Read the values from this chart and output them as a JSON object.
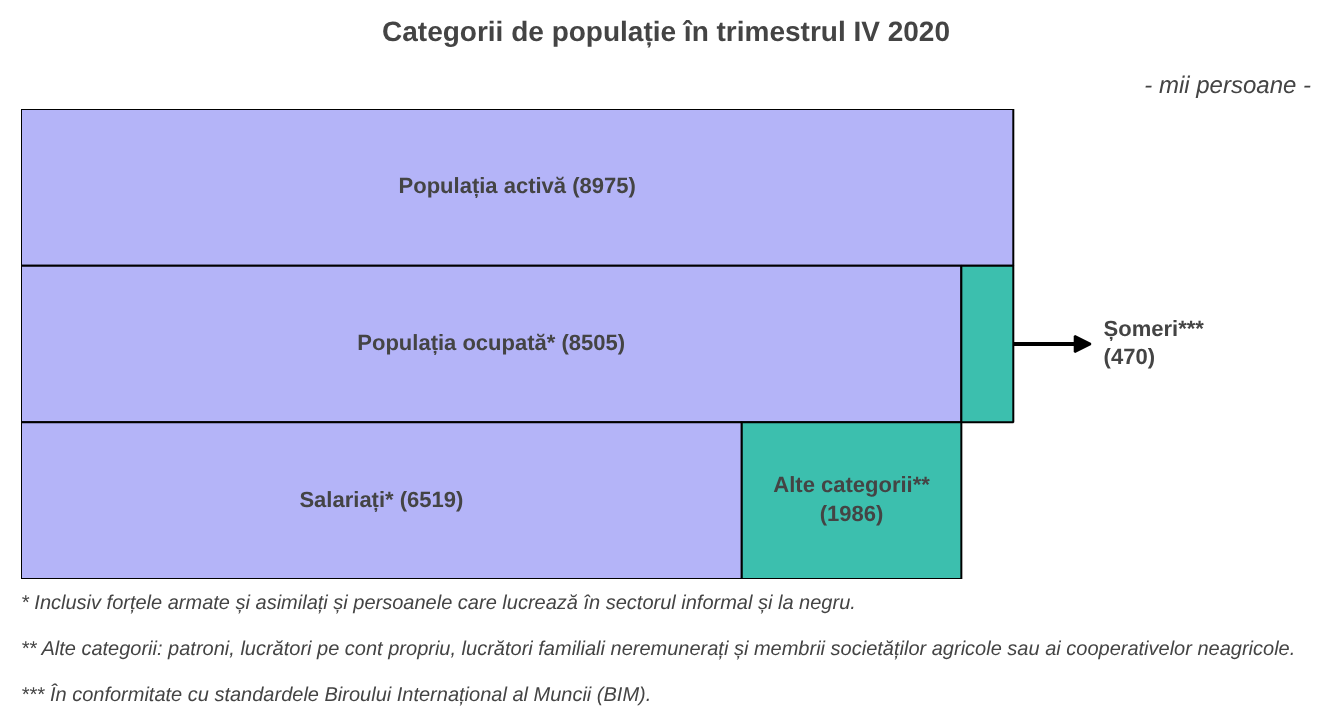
{
  "chart_data": {
    "type": "bar",
    "orientation": "horizontal",
    "stacked": true,
    "title": "Categorii de populație în trimestrul IV 2020",
    "subtitle": "- mii persoane -",
    "categories": [
      null,
      null,
      null
    ],
    "series": [
      {
        "color": "#b4b4f8",
        "values": [
          8975,
          8505,
          6519
        ],
        "value_labels": [
          "Populația activă (8975)",
          "Populația ocupată* (8505)",
          "Salariați* (6519)"
        ]
      },
      {
        "color": "#3cbfae",
        "values": [
          null,
          470,
          1986
        ],
        "value_labels": [
          null,
          "Șomeri*** (470)",
          "Alte categorii** (1986)"
        ]
      }
    ],
    "tick_labels": false,
    "grid": false,
    "annotations": [
      "*  Inclusiv forțele armate și asimilați și persoanele care lucrează în sectorul informal și la negru.",
      "**  Alte categorii: patroni, lucrători pe cont propriu, lucrători familiali neremunerați și membrii societăților agricole sau ai cooperativelor neagricole.",
      "*** În conformitate cu standardele Biroului Internațional al Muncii (BIM)."
    ]
  }
}
